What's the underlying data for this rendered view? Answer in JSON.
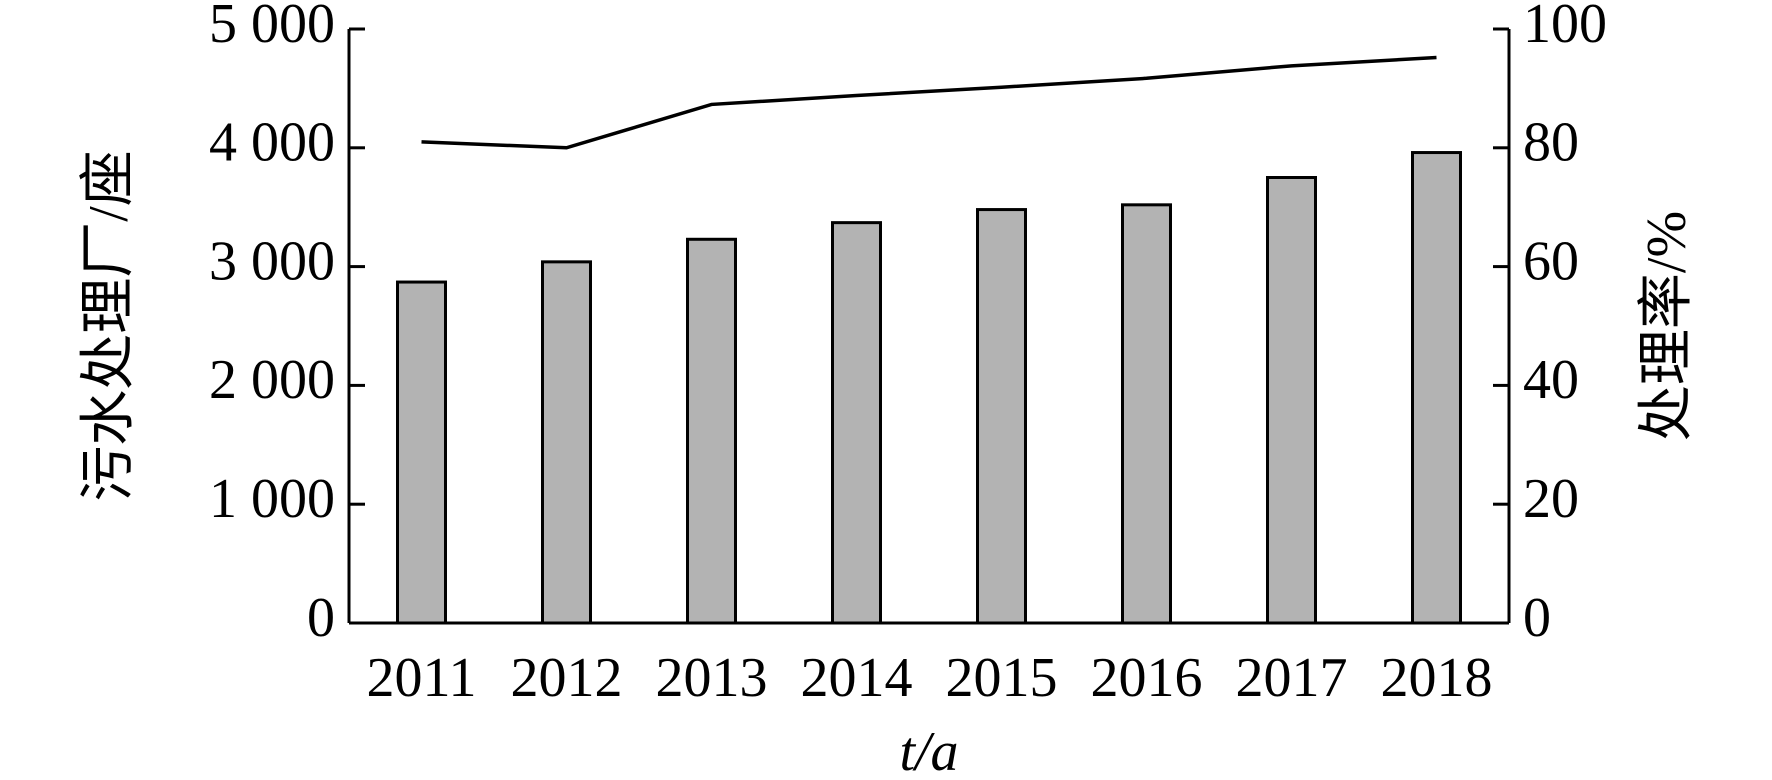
{
  "chart_data": {
    "type": "bar",
    "categories": [
      "2011",
      "2012",
      "2013",
      "2014",
      "2015",
      "2016",
      "2017",
      "2018"
    ],
    "x_label": "t/a",
    "y_label": "污水处理厂/座",
    "y2_label": "处理率/%",
    "series": [
      {
        "name": "污水处理厂",
        "type": "bar",
        "color": "#b3b3b3",
        "values": [
          2870,
          3040,
          3230,
          3370,
          3480,
          3520,
          3750,
          3960
        ]
      },
      {
        "name": "处理率",
        "type": "line",
        "axis": "y2",
        "color": "#000000",
        "values": [
          81.0,
          80.0,
          87.3,
          88.8,
          90.2,
          91.7,
          93.8,
          95.2
        ]
      }
    ],
    "ylim": [
      0,
      5000
    ],
    "yticks": [
      0,
      {
        "value": 1000,
        "label": "1 000"
      },
      {
        "value": 2000,
        "label": "2 000"
      },
      {
        "value": 3000,
        "label": "3 000"
      },
      {
        "value": 4000,
        "label": "4 000"
      },
      {
        "value": 5000,
        "label": "5 000"
      }
    ],
    "y2lim": [
      0,
      100
    ],
    "y2ticks": [
      0,
      20,
      40,
      60,
      80,
      100
    ]
  }
}
